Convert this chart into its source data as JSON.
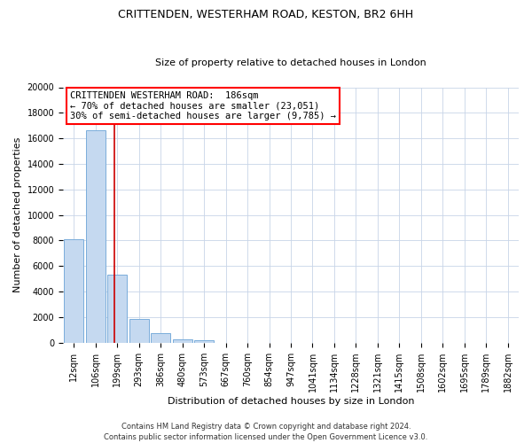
{
  "title": "CRITTENDEN, WESTERHAM ROAD, KESTON, BR2 6HH",
  "subtitle": "Size of property relative to detached houses in London",
  "xlabel": "Distribution of detached houses by size in London",
  "ylabel": "Number of detached properties",
  "bar_labels": [
    "12sqm",
    "106sqm",
    "199sqm",
    "293sqm",
    "386sqm",
    "480sqm",
    "573sqm",
    "667sqm",
    "760sqm",
    "854sqm",
    "947sqm",
    "1041sqm",
    "1134sqm",
    "1228sqm",
    "1321sqm",
    "1415sqm",
    "1508sqm",
    "1602sqm",
    "1695sqm",
    "1789sqm",
    "1882sqm"
  ],
  "bar_values": [
    8100,
    16600,
    5300,
    1850,
    750,
    280,
    180,
    0,
    0,
    0,
    0,
    0,
    0,
    0,
    0,
    0,
    0,
    0,
    0,
    0,
    0
  ],
  "bar_color": "#c5d9f0",
  "bar_edge_color": "#7aaddb",
  "ylim": [
    0,
    20000
  ],
  "yticks": [
    0,
    2000,
    4000,
    6000,
    8000,
    10000,
    12000,
    14000,
    16000,
    18000,
    20000
  ],
  "vline_x": 1.85,
  "vline_color": "#cc0000",
  "annotation_line1": "CRITTENDEN WESTERHAM ROAD:  186sqm",
  "annotation_line2": "← 70% of detached houses are smaller (23,051)",
  "annotation_line3": "30% of semi-detached houses are larger (9,785) →",
  "footer1": "Contains HM Land Registry data © Crown copyright and database right 2024.",
  "footer2": "Contains public sector information licensed under the Open Government Licence v3.0.",
  "background_color": "#ffffff",
  "grid_color": "#c8d4e8",
  "title_fontsize": 9,
  "subtitle_fontsize": 8,
  "annotation_fontsize": 7.5,
  "axis_label_fontsize": 8,
  "tick_fontsize": 7,
  "footer_fontsize": 6
}
